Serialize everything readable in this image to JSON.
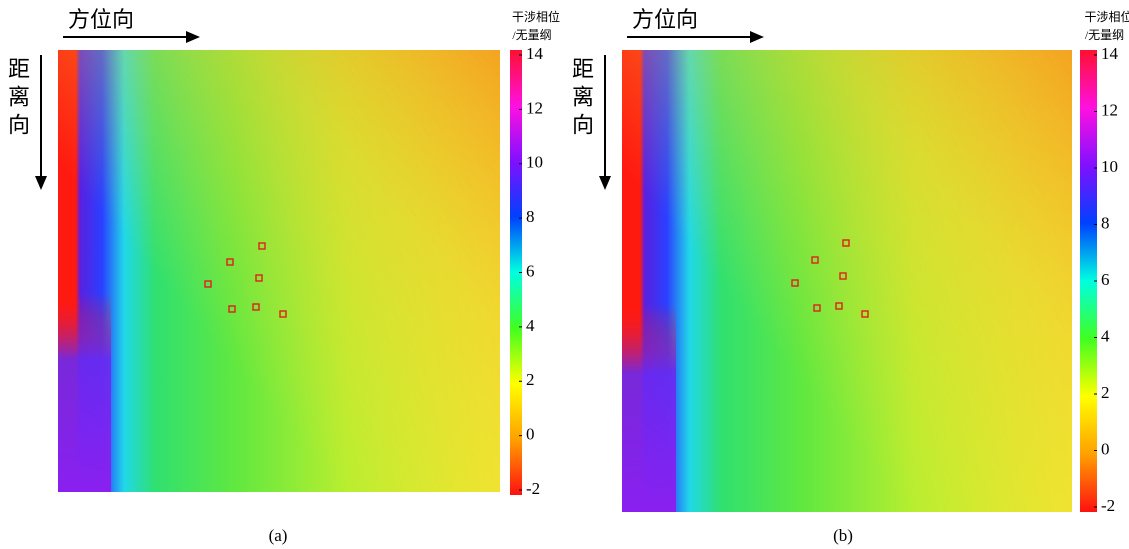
{
  "panels": [
    {
      "label": "(a)",
      "azimuth": "方位向",
      "range": "距离向",
      "colorbar": {
        "title": "干涉相位",
        "unit": "/无量纲",
        "lim": [
          -2,
          14
        ],
        "ticks": [
          -2,
          0,
          2,
          4,
          6,
          8,
          10,
          12,
          14
        ]
      }
    },
    {
      "label": "(b)",
      "azimuth": "方位向",
      "range": "距离向",
      "colorbar": {
        "title": "干涉相位",
        "unit": "/无量纲",
        "lim": [
          -2,
          14
        ],
        "ticks": [
          -2,
          0,
          2,
          4,
          6,
          8,
          10,
          12,
          14
        ]
      }
    }
  ]
}
